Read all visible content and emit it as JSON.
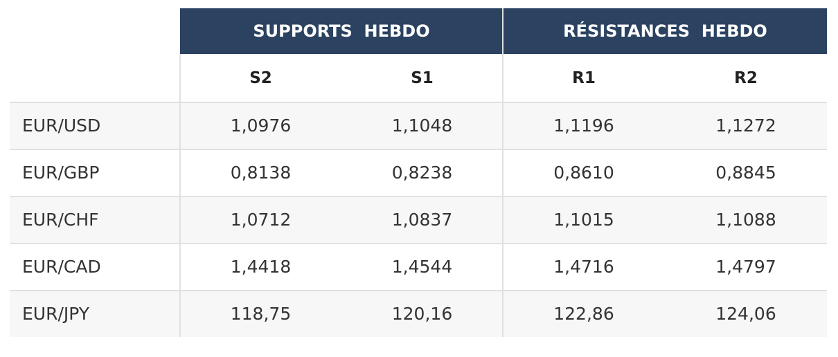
{
  "table": {
    "groups": [
      "SUPPORTS  HEBDO",
      "RÉSISTANCES  HEBDO"
    ],
    "columns": [
      "S2",
      "S1",
      "R1",
      "R2"
    ],
    "rows": [
      [
        "EUR/USD",
        "1,0976",
        "1,1048",
        "1,1196",
        "1,1272"
      ],
      [
        "EUR/GBP",
        "0,8138",
        "0,8238",
        "0,8610",
        "0,8845"
      ],
      [
        "EUR/CHF",
        "1,0712",
        "1,0837",
        "1,1015",
        "1,1088"
      ],
      [
        "EUR/CAD",
        "1,4418",
        "1,4544",
        "1,4716",
        "1,4797"
      ],
      [
        "EUR/JPY",
        "118,75",
        "120,16",
        "122,86",
        "124,06"
      ]
    ]
  }
}
